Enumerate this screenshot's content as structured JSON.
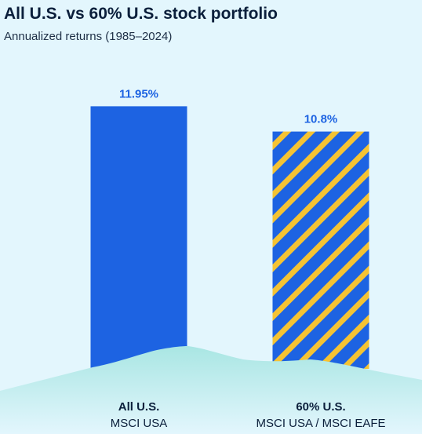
{
  "chart_data": {
    "type": "bar",
    "title": "All U.S. vs 60% U.S. stock portfolio",
    "subtitle": "Annualized returns (1985–2024)",
    "categories": [
      "All U.S.",
      "60% U.S."
    ],
    "category_sublabels": [
      "MSCI USA",
      "MSCI USA / MSCI EAFE"
    ],
    "values": [
      11.95,
      10.8
    ],
    "value_labels": [
      "11.95%",
      "10.8%"
    ],
    "unit": "%",
    "xlabel": "",
    "ylabel": "",
    "grid": false,
    "colors": {
      "bar_solid": "#1d63e2",
      "bar_stripe_base": "#1d63e2",
      "bar_stripe_accent": "#f5c333",
      "value_label": "#1d63e2",
      "background": "#e3f6fd",
      "mound": "#bdece9"
    },
    "bar_styles": [
      "solid",
      "striped"
    ]
  }
}
